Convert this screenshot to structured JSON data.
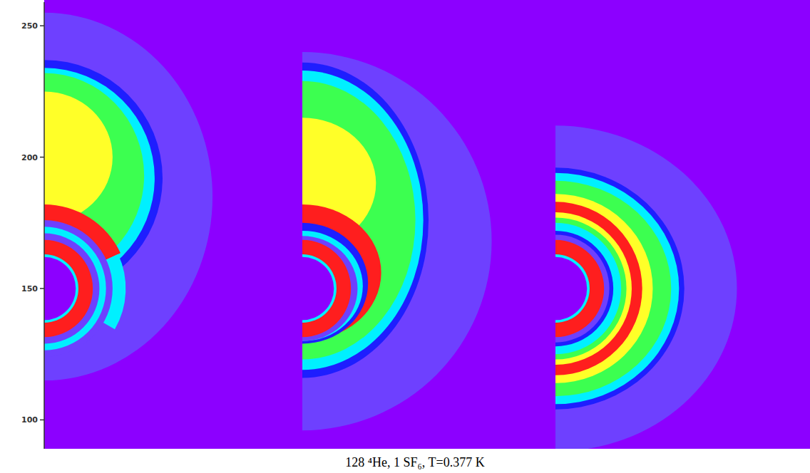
{
  "chart_data": {
    "type": "density_map",
    "title": "128 ⁴He, 1 SF₆, T=0.377 K",
    "ylim": [
      89,
      259
    ],
    "yticks": [
      100,
      150,
      200,
      250
    ],
    "tick_labels": "y",
    "grid": false,
    "colors": [
      "#8c00ff",
      "#6e40ff",
      "#1e1eff",
      "#00f0ff",
      "#3cff50",
      "#ffff28",
      "#ff1e1e"
    ],
    "panels": [
      {
        "shapes": [
          {
            "cy": 185,
            "rx": 64,
            "ry": 70,
            "level": 1
          },
          {
            "cy": 192,
            "rx": 45,
            "ry": 45,
            "level": 2
          },
          {
            "cy": 192,
            "rx": 42,
            "ry": 42,
            "level": 3
          },
          {
            "cy": 193,
            "rx": 38,
            "ry": 39,
            "level": 4
          },
          {
            "cy": 200,
            "rx": 26,
            "ry": 25,
            "level": 5
          },
          {
            "cy": 150,
            "rx": 32,
            "ry": 32,
            "level": 6,
            "angles": [
              0,
              65
            ]
          },
          {
            "cy": 150,
            "rx": 31,
            "ry": 31,
            "level": 3,
            "angles": [
              65,
              120
            ]
          },
          {
            "cy": 150,
            "rx": 26,
            "ry": 26,
            "level": 1
          },
          {
            "cy": 150,
            "rx": 23.5,
            "ry": 23.5,
            "level": 3
          },
          {
            "cy": 150,
            "rx": 21,
            "ry": 21,
            "level": 1
          },
          {
            "cy": 150,
            "rx": 18.5,
            "ry": 18.5,
            "level": 6
          },
          {
            "cy": 150,
            "rx": 13,
            "ry": 13,
            "level": 3
          },
          {
            "cy": 150,
            "rx": 12,
            "ry": 12,
            "level": 0
          }
        ]
      },
      {
        "shapes": [
          {
            "cy": 168,
            "rx": 72,
            "ry": 72,
            "level": 1
          },
          {
            "cy": 176,
            "rx": 48,
            "ry": 60,
            "level": 2
          },
          {
            "cy": 176,
            "rx": 46,
            "ry": 57,
            "level": 3
          },
          {
            "cy": 176,
            "rx": 43,
            "ry": 53,
            "level": 4
          },
          {
            "cy": 190,
            "rx": 28,
            "ry": 25,
            "level": 5
          },
          {
            "cy": 156,
            "rx": 30,
            "ry": 26,
            "level": 6
          },
          {
            "cy": 152,
            "rx": 25,
            "ry": 23,
            "level": 2
          },
          {
            "cy": 151,
            "rx": 23,
            "ry": 21,
            "level": 3
          },
          {
            "cy": 150,
            "rx": 21,
            "ry": 20,
            "level": 1
          },
          {
            "cy": 150,
            "rx": 18.5,
            "ry": 18.5,
            "level": 6
          },
          {
            "cy": 150,
            "rx": 13,
            "ry": 13,
            "level": 3
          },
          {
            "cy": 150,
            "rx": 12,
            "ry": 12,
            "level": 0
          }
        ]
      },
      {
        "shapes": [
          {
            "cy": 150,
            "rx": 69,
            "ry": 62,
            "level": 1
          },
          {
            "cy": 150,
            "rx": 49,
            "ry": 46,
            "level": 2
          },
          {
            "cy": 150,
            "rx": 47,
            "ry": 44,
            "level": 3
          },
          {
            "cy": 150,
            "rx": 44,
            "ry": 41,
            "level": 4
          },
          {
            "cy": 150,
            "rx": 37,
            "ry": 36,
            "level": 5
          },
          {
            "cy": 150,
            "rx": 33,
            "ry": 33,
            "level": 6
          },
          {
            "cy": 150,
            "rx": 29,
            "ry": 29,
            "level": 5
          },
          {
            "cy": 150,
            "rx": 27,
            "ry": 27,
            "level": 4
          },
          {
            "cy": 150,
            "rx": 25,
            "ry": 25,
            "level": 3
          },
          {
            "cy": 150,
            "rx": 22,
            "ry": 22,
            "level": 2
          },
          {
            "cy": 150,
            "rx": 20.5,
            "ry": 20.5,
            "level": 1
          },
          {
            "cy": 150,
            "rx": 18.5,
            "ry": 18.5,
            "level": 6
          },
          {
            "cy": 150,
            "rx": 13,
            "ry": 13,
            "level": 3
          },
          {
            "cy": 150,
            "rx": 12,
            "ry": 12,
            "level": 0
          }
        ]
      }
    ]
  }
}
